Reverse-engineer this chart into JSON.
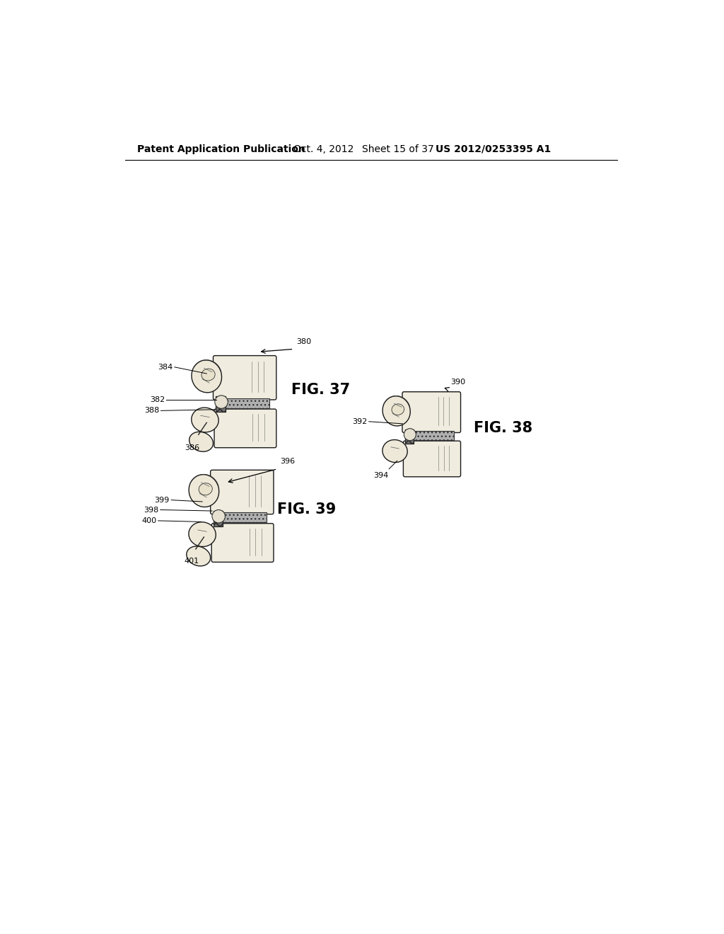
{
  "background_color": "#ffffff",
  "header_text": "Patent Application Publication",
  "header_date": "Oct. 4, 2012",
  "header_sheet": "Sheet 15 of 37",
  "header_patent": "US 2012/0253395 A1",
  "fig37_label": "FIG. 37",
  "fig38_label": "FIG. 38",
  "fig39_label": "FIG. 39",
  "ref_fontsize": 8,
  "header_fontsize": 10,
  "fig_label_fontsize": 15
}
